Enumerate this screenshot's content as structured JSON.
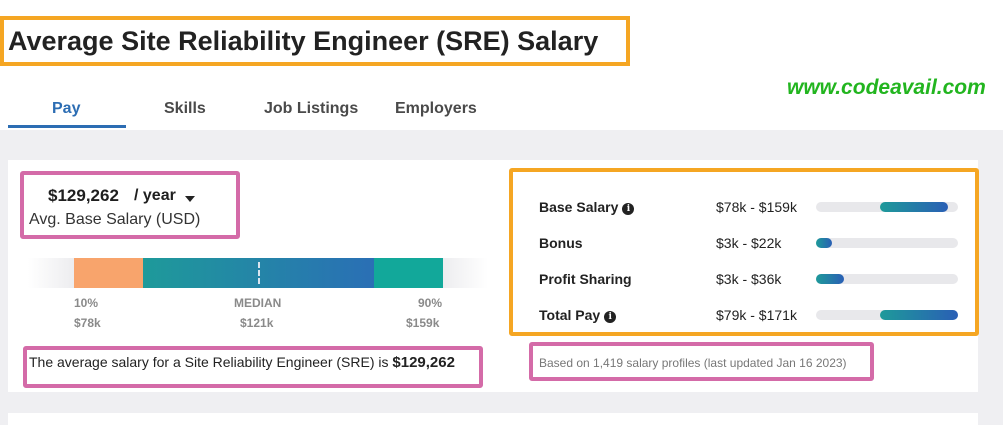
{
  "page": {
    "title": "Average Site Reliability Engineer (SRE) Salary",
    "watermark": "www.codeavail.com"
  },
  "tabs": [
    {
      "label": "Pay",
      "active": true
    },
    {
      "label": "Skills",
      "active": false
    },
    {
      "label": "Job Listings",
      "active": false
    },
    {
      "label": "Employers",
      "active": false
    }
  ],
  "summary": {
    "amount": "$129,262",
    "period": "/ year",
    "label": "Avg. Base Salary (USD)"
  },
  "percentiles": {
    "low": {
      "label": "10%",
      "value": "$78k"
    },
    "median": {
      "label": "MEDIAN",
      "value": "$121k"
    },
    "high": {
      "label": "90%",
      "value": "$159k"
    }
  },
  "average_sentence": {
    "prefix": "The average salary for a Site Reliability Engineer (SRE) is ",
    "amount": "$129,262"
  },
  "breakdown": [
    {
      "label": "Base Salary",
      "info": true,
      "range": "$78k - $159k",
      "fill_start": 0.45,
      "fill_end": 0.93
    },
    {
      "label": "Bonus",
      "info": false,
      "range": "$3k - $22k",
      "fill_start": 0.0,
      "fill_end": 0.11
    },
    {
      "label": "Profit Sharing",
      "info": false,
      "range": "$3k - $36k",
      "fill_start": 0.0,
      "fill_end": 0.2
    },
    {
      "label": "Total Pay",
      "info": true,
      "range": "$79k - $171k",
      "fill_start": 0.45,
      "fill_end": 1.0
    }
  ],
  "footnote": "Based on 1,419 salary profiles (last updated Jan 16 2023)",
  "colors": {
    "accent": "#2c6db3",
    "highlight_orange": "#f5a623",
    "highlight_pink": "#d46ba8",
    "watermark": "#22b51f"
  }
}
